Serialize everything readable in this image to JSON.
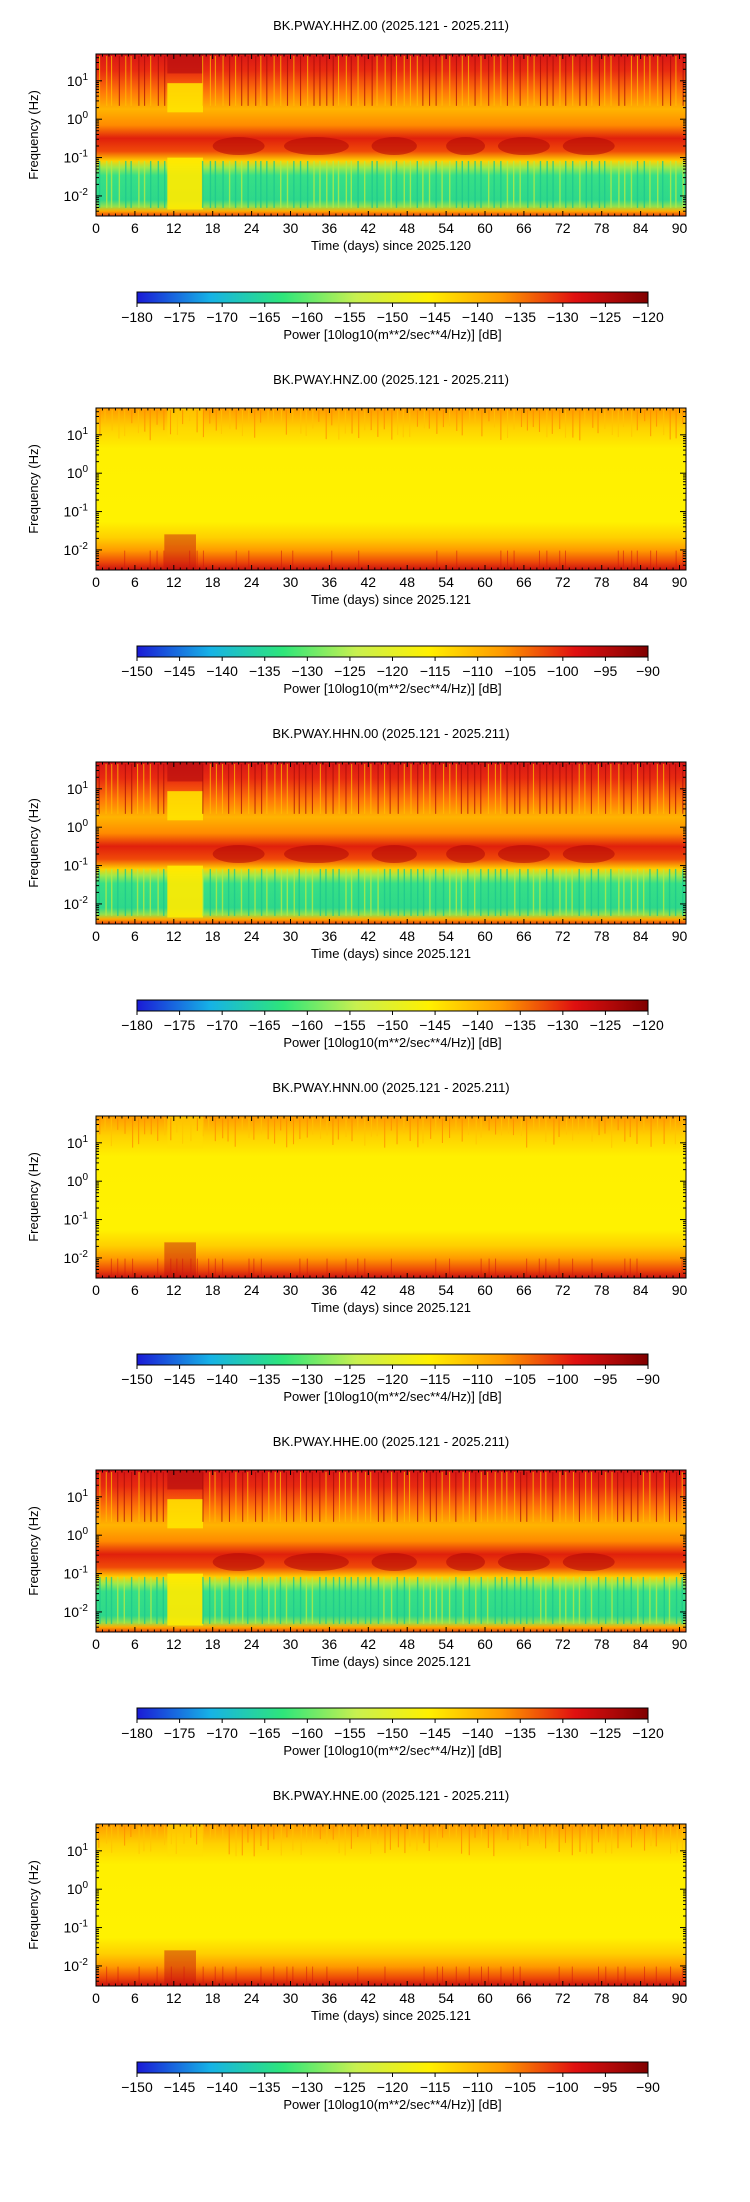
{
  "chart_data": [
    {
      "type": "heatmap",
      "title": "BK.PWAY.HHZ.00 (2025.121 - 2025.211)",
      "xlabel": "Time (days) since 2025.120",
      "ylabel": "Frequency (Hz)",
      "x_ticks": [
        0,
        6,
        12,
        18,
        24,
        30,
        36,
        42,
        48,
        54,
        60,
        66,
        72,
        78,
        84,
        90
      ],
      "xlim": [
        0,
        91
      ],
      "y_scale": "log",
      "y_ticks": [
        {
          "base": "10",
          "exp": "1",
          "value": 10
        },
        {
          "base": "10",
          "exp": "0",
          "value": 1
        },
        {
          "base": "10",
          "exp": "-1",
          "value": 0.1
        },
        {
          "base": "10",
          "exp": "-2",
          "value": 0.01
        }
      ],
      "ylim": [
        0.003,
        50
      ],
      "palette": "quiet",
      "colorbar": {
        "label": "Power [10log10(m**2/sec**4/Hz)] [dB]",
        "ticks": [
          "−180",
          "−175",
          "−170",
          "−165",
          "−160",
          "−155",
          "−150",
          "−145",
          "−140",
          "−135",
          "−130",
          "−125",
          "−120"
        ],
        "range_db": [
          -180,
          -120
        ],
        "colors": [
          "#1a1ad6",
          "#16b2e6",
          "#2ee67a",
          "#c8f050",
          "#fff000",
          "#ff9a00",
          "#e01010",
          "#800000"
        ]
      }
    },
    {
      "type": "heatmap",
      "title": "BK.PWAY.HNZ.00 (2025.121 - 2025.211)",
      "xlabel": "Time (days) since 2025.121",
      "ylabel": "Frequency (Hz)",
      "x_ticks": [
        0,
        6,
        12,
        18,
        24,
        30,
        36,
        42,
        48,
        54,
        60,
        66,
        72,
        78,
        84,
        90
      ],
      "xlim": [
        0,
        91
      ],
      "y_scale": "log",
      "y_ticks": [
        {
          "base": "10",
          "exp": "1",
          "value": 10
        },
        {
          "base": "10",
          "exp": "0",
          "value": 1
        },
        {
          "base": "10",
          "exp": "-1",
          "value": 0.1
        },
        {
          "base": "10",
          "exp": "-2",
          "value": 0.01
        }
      ],
      "ylim": [
        0.003,
        50
      ],
      "palette": "strong",
      "colorbar": {
        "label": "Power [10log10(m**2/sec**4/Hz)] [dB]",
        "ticks": [
          "−150",
          "−145",
          "−140",
          "−135",
          "−130",
          "−125",
          "−120",
          "−115",
          "−110",
          "−105",
          "−100",
          "−95",
          "−90"
        ],
        "range_db": [
          -150,
          -90
        ],
        "colors": [
          "#1a1ad6",
          "#16b2e6",
          "#2ee67a",
          "#c8f050",
          "#fff000",
          "#ff9a00",
          "#e01010",
          "#800000"
        ]
      }
    },
    {
      "type": "heatmap",
      "title": "BK.PWAY.HHN.00 (2025.121 - 2025.211)",
      "xlabel": "Time (days) since 2025.121",
      "ylabel": "Frequency (Hz)",
      "x_ticks": [
        0,
        6,
        12,
        18,
        24,
        30,
        36,
        42,
        48,
        54,
        60,
        66,
        72,
        78,
        84,
        90
      ],
      "xlim": [
        0,
        91
      ],
      "y_scale": "log",
      "y_ticks": [
        {
          "base": "10",
          "exp": "1",
          "value": 10
        },
        {
          "base": "10",
          "exp": "0",
          "value": 1
        },
        {
          "base": "10",
          "exp": "-1",
          "value": 0.1
        },
        {
          "base": "10",
          "exp": "-2",
          "value": 0.01
        }
      ],
      "ylim": [
        0.003,
        50
      ],
      "palette": "quiet",
      "colorbar": {
        "label": "Power [10log10(m**2/sec**4/Hz)] [dB]",
        "ticks": [
          "−180",
          "−175",
          "−170",
          "−165",
          "−160",
          "−155",
          "−150",
          "−145",
          "−140",
          "−135",
          "−130",
          "−125",
          "−120"
        ],
        "range_db": [
          -180,
          -120
        ],
        "colors": [
          "#1a1ad6",
          "#16b2e6",
          "#2ee67a",
          "#c8f050",
          "#fff000",
          "#ff9a00",
          "#e01010",
          "#800000"
        ]
      }
    },
    {
      "type": "heatmap",
      "title": "BK.PWAY.HNN.00 (2025.121 - 2025.211)",
      "xlabel": "Time (days) since 2025.121",
      "ylabel": "Frequency (Hz)",
      "x_ticks": [
        0,
        6,
        12,
        18,
        24,
        30,
        36,
        42,
        48,
        54,
        60,
        66,
        72,
        78,
        84,
        90
      ],
      "xlim": [
        0,
        91
      ],
      "y_scale": "log",
      "y_ticks": [
        {
          "base": "10",
          "exp": "1",
          "value": 10
        },
        {
          "base": "10",
          "exp": "0",
          "value": 1
        },
        {
          "base": "10",
          "exp": "-1",
          "value": 0.1
        },
        {
          "base": "10",
          "exp": "-2",
          "value": 0.01
        }
      ],
      "ylim": [
        0.003,
        50
      ],
      "palette": "strong",
      "colorbar": {
        "label": "Power [10log10(m**2/sec**4/Hz)] [dB]",
        "ticks": [
          "−150",
          "−145",
          "−140",
          "−135",
          "−130",
          "−125",
          "−120",
          "−115",
          "−110",
          "−105",
          "−100",
          "−95",
          "−90"
        ],
        "range_db": [
          -150,
          -90
        ],
        "colors": [
          "#1a1ad6",
          "#16b2e6",
          "#2ee67a",
          "#c8f050",
          "#fff000",
          "#ff9a00",
          "#e01010",
          "#800000"
        ]
      }
    },
    {
      "type": "heatmap",
      "title": "BK.PWAY.HHE.00 (2025.121 - 2025.211)",
      "xlabel": "Time (days) since 2025.121",
      "ylabel": "Frequency (Hz)",
      "x_ticks": [
        0,
        6,
        12,
        18,
        24,
        30,
        36,
        42,
        48,
        54,
        60,
        66,
        72,
        78,
        84,
        90
      ],
      "xlim": [
        0,
        91
      ],
      "y_scale": "log",
      "y_ticks": [
        {
          "base": "10",
          "exp": "1",
          "value": 10
        },
        {
          "base": "10",
          "exp": "0",
          "value": 1
        },
        {
          "base": "10",
          "exp": "-1",
          "value": 0.1
        },
        {
          "base": "10",
          "exp": "-2",
          "value": 0.01
        }
      ],
      "ylim": [
        0.003,
        50
      ],
      "palette": "quiet",
      "colorbar": {
        "label": "Power [10log10(m**2/sec**4/Hz)] [dB]",
        "ticks": [
          "−180",
          "−175",
          "−170",
          "−165",
          "−160",
          "−155",
          "−150",
          "−145",
          "−140",
          "−135",
          "−130",
          "−125",
          "−120"
        ],
        "range_db": [
          -180,
          -120
        ],
        "colors": [
          "#1a1ad6",
          "#16b2e6",
          "#2ee67a",
          "#c8f050",
          "#fff000",
          "#ff9a00",
          "#e01010",
          "#800000"
        ]
      }
    },
    {
      "type": "heatmap",
      "title": "BK.PWAY.HNE.00 (2025.121 - 2025.211)",
      "xlabel": "Time (days) since 2025.121",
      "ylabel": "Frequency (Hz)",
      "x_ticks": [
        0,
        6,
        12,
        18,
        24,
        30,
        36,
        42,
        48,
        54,
        60,
        66,
        72,
        78,
        84,
        90
      ],
      "xlim": [
        0,
        91
      ],
      "y_scale": "log",
      "y_ticks": [
        {
          "base": "10",
          "exp": "1",
          "value": 10
        },
        {
          "base": "10",
          "exp": "0",
          "value": 1
        },
        {
          "base": "10",
          "exp": "-1",
          "value": 0.1
        },
        {
          "base": "10",
          "exp": "-2",
          "value": 0.01
        }
      ],
      "ylim": [
        0.003,
        50
      ],
      "palette": "strong",
      "colorbar": {
        "label": "Power [10log10(m**2/sec**4/Hz)] [dB]",
        "ticks": [
          "−150",
          "−145",
          "−140",
          "−135",
          "−130",
          "−125",
          "−120",
          "−115",
          "−110",
          "−105",
          "−100",
          "−95",
          "−90"
        ],
        "range_db": [
          -150,
          -90
        ],
        "colors": [
          "#1a1ad6",
          "#16b2e6",
          "#2ee67a",
          "#c8f050",
          "#fff000",
          "#ff9a00",
          "#e01010",
          "#800000"
        ]
      }
    }
  ]
}
